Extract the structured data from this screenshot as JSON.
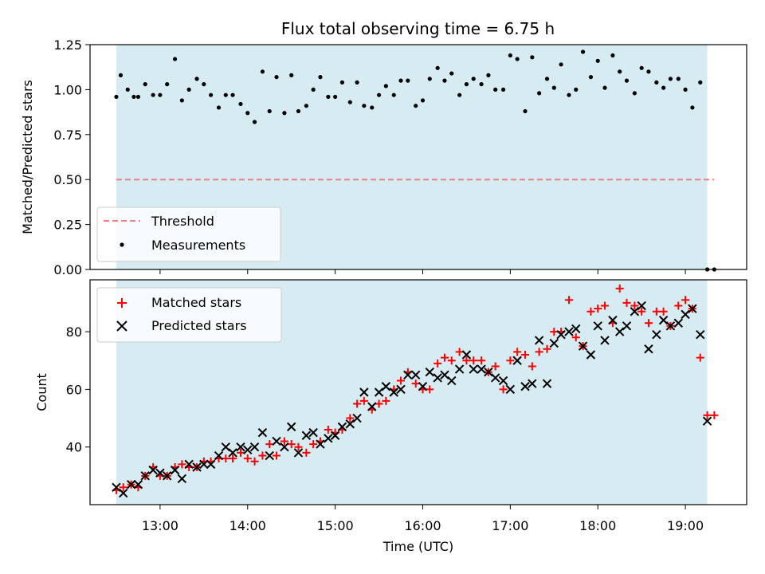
{
  "chart_data": [
    {
      "type": "scatter",
      "title": "Flux total observing time = 6.75 h",
      "ylabel": "Matched/Predicted stars",
      "xlabel": "",
      "xlim": [
        12.2,
        19.7
      ],
      "ylim": [
        0.0,
        1.25
      ],
      "ytick_labels": [
        "0.00",
        "0.25",
        "0.50",
        "0.75",
        "1.00",
        "1.25"
      ],
      "yticks": [
        0.0,
        0.25,
        0.5,
        0.75,
        1.0,
        1.25
      ],
      "shaded_region": [
        12.5,
        19.25
      ],
      "threshold": {
        "name": "Threshold",
        "value": 0.5,
        "x_range": [
          12.5,
          19.33
        ]
      },
      "legend": [
        "Threshold",
        "Measurements"
      ],
      "legend_location": "lower-left",
      "series": [
        {
          "name": "Measurements",
          "x": [
            12.5,
            12.55,
            12.63,
            12.7,
            12.75,
            12.83,
            12.92,
            13.0,
            13.08,
            13.17,
            13.25,
            13.33,
            13.42,
            13.5,
            13.58,
            13.67,
            13.75,
            13.83,
            13.92,
            14.0,
            14.08,
            14.17,
            14.25,
            14.33,
            14.42,
            14.5,
            14.58,
            14.67,
            14.75,
            14.83,
            14.92,
            15.0,
            15.08,
            15.17,
            15.25,
            15.33,
            15.42,
            15.5,
            15.58,
            15.67,
            15.75,
            15.83,
            15.92,
            16.0,
            16.08,
            16.17,
            16.25,
            16.33,
            16.42,
            16.5,
            16.58,
            16.67,
            16.75,
            16.83,
            16.92,
            17.0,
            17.08,
            17.17,
            17.25,
            17.33,
            17.42,
            17.5,
            17.58,
            17.67,
            17.75,
            17.83,
            17.92,
            18.0,
            18.08,
            18.17,
            18.25,
            18.33,
            18.42,
            18.5,
            18.58,
            18.67,
            18.75,
            18.83,
            18.92,
            19.0,
            19.08,
            19.17,
            19.25,
            19.33
          ],
          "values": [
            0.96,
            1.08,
            1.0,
            0.96,
            0.96,
            1.03,
            0.97,
            0.97,
            1.03,
            1.17,
            0.94,
            1.0,
            1.06,
            1.03,
            0.97,
            0.9,
            0.97,
            0.97,
            0.92,
            0.87,
            0.82,
            1.1,
            0.88,
            1.07,
            0.87,
            1.08,
            0.88,
            0.91,
            1.0,
            1.07,
            0.96,
            0.96,
            1.04,
            0.93,
            1.04,
            0.91,
            0.9,
            0.97,
            1.02,
            0.97,
            1.05,
            1.05,
            0.91,
            0.94,
            1.06,
            1.12,
            1.05,
            1.09,
            0.97,
            1.03,
            1.06,
            1.03,
            1.08,
            1.0,
            1.0,
            1.19,
            1.17,
            0.88,
            1.18,
            0.98,
            1.06,
            1.01,
            1.14,
            0.97,
            1.0,
            1.21,
            1.07,
            1.16,
            1.01,
            1.19,
            1.1,
            1.05,
            0.98,
            1.12,
            1.1,
            1.04,
            1.01,
            1.06,
            1.06,
            1.0,
            0.9,
            1.04,
            0.0,
            0.0
          ]
        }
      ]
    },
    {
      "type": "scatter",
      "title": "",
      "ylabel": "Count",
      "xlabel": "Time (UTC)",
      "xlim": [
        12.2,
        19.7
      ],
      "ylim": [
        20,
        98
      ],
      "xticks": [
        13,
        14,
        15,
        16,
        17,
        18,
        19
      ],
      "xtick_labels": [
        "13:00",
        "14:00",
        "15:00",
        "16:00",
        "17:00",
        "18:00",
        "19:00"
      ],
      "yticks": [
        40,
        60,
        80
      ],
      "ytick_labels": [
        "40",
        "60",
        "80"
      ],
      "shaded_region": [
        12.5,
        19.25
      ],
      "legend": [
        "Matched stars",
        "Predicted stars"
      ],
      "legend_location": "top-left",
      "series": [
        {
          "name": "Matched stars",
          "x": [
            12.5,
            12.58,
            12.67,
            12.75,
            12.83,
            12.92,
            13.0,
            13.08,
            13.17,
            13.25,
            13.33,
            13.42,
            13.5,
            13.58,
            13.67,
            13.75,
            13.83,
            13.92,
            14.0,
            14.08,
            14.17,
            14.25,
            14.33,
            14.42,
            14.5,
            14.58,
            14.67,
            14.75,
            14.83,
            14.92,
            15.0,
            15.08,
            15.17,
            15.25,
            15.33,
            15.42,
            15.5,
            15.58,
            15.67,
            15.75,
            15.83,
            15.92,
            16.0,
            16.08,
            16.17,
            16.25,
            16.33,
            16.42,
            16.5,
            16.58,
            16.67,
            16.75,
            16.83,
            16.92,
            17.0,
            17.08,
            17.17,
            17.25,
            17.33,
            17.42,
            17.5,
            17.58,
            17.67,
            17.75,
            17.83,
            17.92,
            18.0,
            18.08,
            18.17,
            18.25,
            18.33,
            18.42,
            18.5,
            18.58,
            18.67,
            18.75,
            18.83,
            18.92,
            19.0,
            19.08,
            19.17,
            19.25,
            19.33
          ],
          "values": [
            25,
            26,
            27,
            26,
            30,
            33,
            30,
            30,
            33,
            34,
            33,
            33,
            35,
            35,
            36,
            36,
            36,
            38,
            36,
            35,
            37,
            41,
            37,
            42,
            41,
            40,
            38,
            41,
            42,
            46,
            45,
            46,
            50,
            55,
            56,
            53,
            55,
            56,
            60,
            63,
            66,
            62,
            60,
            60,
            69,
            71,
            70,
            73,
            70,
            70,
            70,
            66,
            68,
            60,
            70,
            73,
            72,
            68,
            73,
            74,
            80,
            80,
            91,
            78,
            75,
            87,
            88,
            89,
            83,
            95,
            90,
            89,
            87,
            83,
            87,
            87,
            82,
            89,
            91,
            88,
            71,
            51,
            51
          ]
        },
        {
          "name": "Predicted stars",
          "x": [
            12.5,
            12.58,
            12.67,
            12.75,
            12.83,
            12.92,
            13.0,
            13.08,
            13.17,
            13.25,
            13.33,
            13.42,
            13.5,
            13.58,
            13.67,
            13.75,
            13.83,
            13.92,
            14.0,
            14.08,
            14.17,
            14.25,
            14.33,
            14.42,
            14.5,
            14.58,
            14.67,
            14.75,
            14.83,
            14.92,
            15.0,
            15.08,
            15.17,
            15.25,
            15.33,
            15.42,
            15.5,
            15.58,
            15.67,
            15.75,
            15.83,
            15.92,
            16.0,
            16.08,
            16.17,
            16.25,
            16.33,
            16.42,
            16.5,
            16.58,
            16.67,
            16.75,
            16.83,
            16.92,
            17.0,
            17.08,
            17.17,
            17.25,
            17.33,
            17.42,
            17.5,
            17.58,
            17.67,
            17.75,
            17.83,
            17.92,
            18.0,
            18.08,
            18.17,
            18.25,
            18.33,
            18.42,
            18.5,
            18.58,
            18.67,
            18.75,
            18.83,
            18.92,
            19.0,
            19.08,
            19.17,
            19.25
          ],
          "values": [
            26,
            24,
            27,
            27,
            30,
            32,
            31,
            30,
            32,
            29,
            34,
            33,
            34,
            34,
            37,
            40,
            38,
            40,
            39,
            40,
            45,
            37,
            42,
            40,
            47,
            38,
            44,
            45,
            41,
            43,
            44,
            47,
            48,
            50,
            59,
            54,
            59,
            61,
            59,
            60,
            65,
            65,
            61,
            66,
            64,
            65,
            63,
            67,
            72,
            67,
            67,
            66,
            64,
            63,
            60,
            70,
            61,
            62,
            77,
            62,
            76,
            79,
            80,
            81,
            75,
            72,
            82,
            77,
            84,
            80,
            82,
            87,
            89,
            74,
            79,
            84,
            82,
            83,
            86,
            88,
            79,
            49
          ]
        }
      ]
    }
  ]
}
